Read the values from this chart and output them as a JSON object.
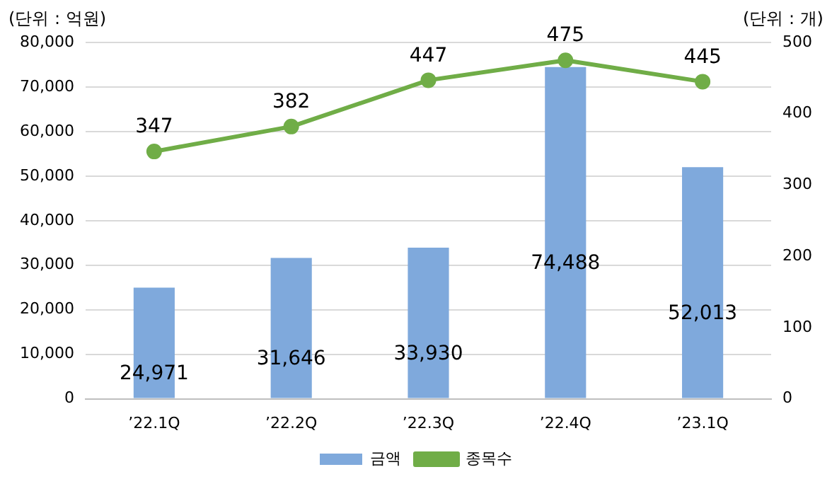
{
  "chart_data": {
    "type": "bar",
    "ylabel": "(단위 : 억원)",
    "y2label": "(단위 : 개)",
    "categories": [
      "’22.1Q",
      "’22.2Q",
      "’22.3Q",
      "’22.4Q",
      "’23.1Q"
    ],
    "series": [
      {
        "name": "금액",
        "color": "#7fa9dc",
        "values": [
          24971,
          31646,
          33930,
          74488,
          52013
        ],
        "value_labels": [
          "24,971",
          "31,646",
          "33,930",
          "74,488",
          "52,013"
        ]
      },
      {
        "name": "종목수",
        "type": "line",
        "axis": "y2",
        "color": "#70ad47",
        "values": [
          347,
          382,
          447,
          475,
          445
        ],
        "value_labels": [
          "347",
          "382",
          "447",
          "475",
          "445"
        ]
      }
    ],
    "ylim": [
      0,
      80000
    ],
    "yticks": [
      0,
      {
        "value": 10000,
        "label": "10,000"
      },
      {
        "value": 20000,
        "label": "20,000"
      },
      {
        "value": 30000,
        "label": "30,000"
      },
      {
        "value": 40000,
        "label": "40,000"
      },
      {
        "value": 50000,
        "label": "50,000"
      },
      {
        "value": 60000,
        "label": "60,000"
      },
      {
        "value": 70000,
        "label": "70,000"
      },
      {
        "value": 80000,
        "label": "80,000"
      }
    ],
    "y2lim": [
      0,
      500
    ],
    "y2ticks": [
      0,
      100,
      200,
      300,
      400,
      500
    ],
    "grid": "y",
    "legend": "bottom",
    "marker": "circle",
    "line_style": "solid"
  }
}
